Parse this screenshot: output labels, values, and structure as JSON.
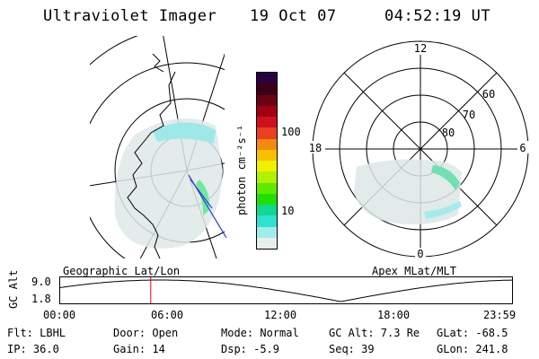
{
  "header": {
    "title": "Ultraviolet Imager",
    "date": "19 Oct 07",
    "time": "04:52:19 UT"
  },
  "left_map": {
    "footer_label": "Geographic Lat/Lon"
  },
  "right_map": {
    "footer_label": "Apex MLat/MLT",
    "mlt_labels": {
      "top": "12",
      "left": "18",
      "right": "6",
      "bottom": "0"
    },
    "lat_labels": [
      "60",
      "70",
      "80"
    ]
  },
  "colorbar": {
    "unit_label": "photon cm⁻²s⁻¹",
    "tick_labels": [
      "100",
      "10"
    ],
    "colors": [
      "#2a0040",
      "#3a0018",
      "#6a0010",
      "#a00010",
      "#d01020",
      "#e84020",
      "#f08a10",
      "#f8c000",
      "#f0f000",
      "#b0f000",
      "#60e800",
      "#20e000",
      "#10d890",
      "#30e0d0",
      "#a0ecec",
      "#e6eeee"
    ]
  },
  "orbit_plot": {
    "ylabel": "GC Alt",
    "ytick_top": "9.0",
    "ytick_bottom": "1.8",
    "xtick_labels": [
      "00:00",
      "06:00",
      "12:00",
      "18:00",
      "23:59"
    ],
    "current_time_fraction": 0.2
  },
  "info": {
    "flt": "Flt: LBHL",
    "ip": "IP: 36.0",
    "door": "Door: Open",
    "gain": "Gain: 14",
    "mode": "Mode: Normal",
    "dsp": "Dsp:   -5.9",
    "gc_alt": "GC Alt: 7.3 Re",
    "seq": "Seq: 39",
    "glat": "GLat:  -68.5",
    "glon": "GLon:  241.8"
  }
}
